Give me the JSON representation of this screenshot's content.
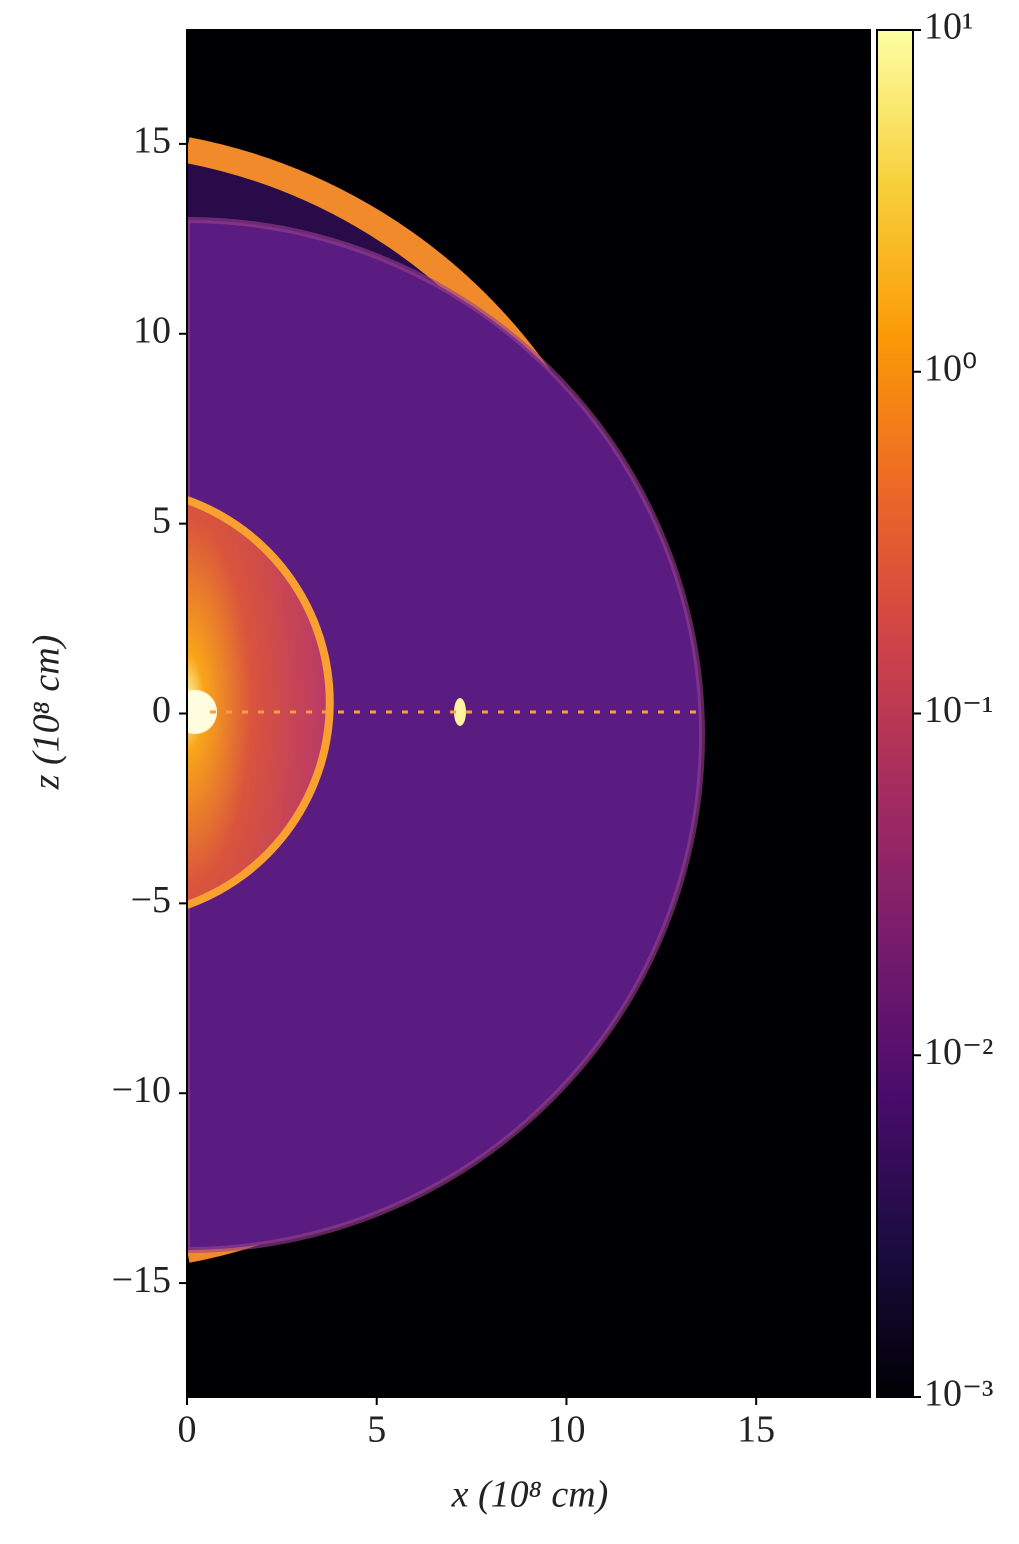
{
  "chart_data": {
    "type": "image",
    "xlabel": "x (10⁸ cm)",
    "ylabel": "z (10⁸ cm)",
    "xlim": [
      0,
      18
    ],
    "xticks": [
      0,
      5,
      10,
      15
    ],
    "ylim": [
      -18,
      18
    ],
    "yticks": [
      {
        "value": -15,
        "label": "−15"
      },
      {
        "value": -10,
        "label": "−10"
      },
      {
        "value": -5,
        "label": "−5"
      },
      0,
      5,
      10,
      15
    ],
    "colormap": "inferno",
    "clog": true,
    "clim": [
      0.001,
      10
    ],
    "cticks": [
      {
        "value": 0.001,
        "label": "10⁻³"
      },
      {
        "value": 0.01,
        "label": "10⁻²"
      },
      {
        "value": 0.1,
        "label": "10⁻¹"
      },
      {
        "value": 1,
        "label": "10⁰"
      },
      {
        "value": 10,
        "label": "10¹"
      }
    ]
  }
}
